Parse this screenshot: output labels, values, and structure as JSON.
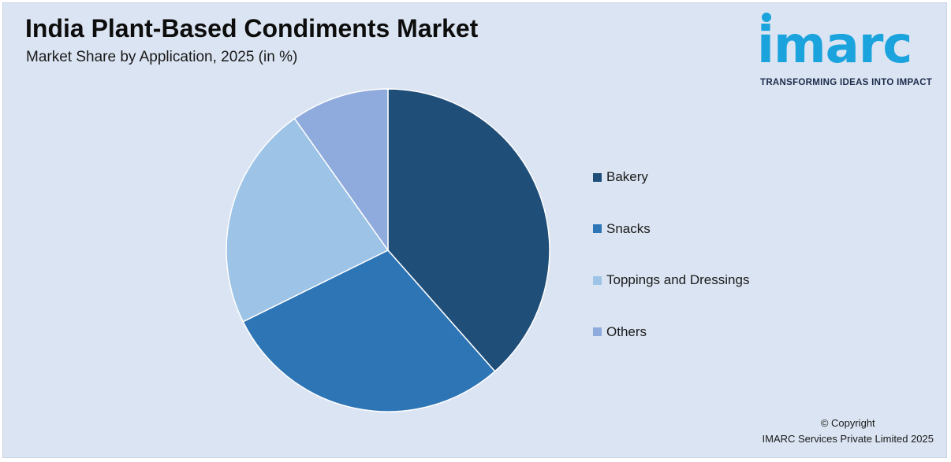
{
  "header": {
    "title": "India Plant-Based Condiments Market",
    "subtitle": "Market Share by Application, 2025 (in %)"
  },
  "logo": {
    "wordmark": "imarc",
    "tagline": "TRANSFORMING IDEAS INTO IMPACT",
    "color": "#1aa3dc"
  },
  "chart_data": {
    "type": "pie",
    "title": "India Plant-Based Condiments Market",
    "subtitle": "Market Share by Application, 2025 (in %)",
    "categories": [
      "Bakery",
      "Snacks",
      "Toppings and Dressings",
      "Others"
    ],
    "values": [
      38.5,
      29.2,
      22.5,
      9.8
    ],
    "colors": [
      "#1f4e79",
      "#2e75b6",
      "#9dc3e6",
      "#8faadc"
    ],
    "start_angle_deg": 0,
    "direction": "clockwise",
    "legend_position": "right"
  },
  "footer": {
    "copyright_line1": "© Copyright",
    "copyright_line2": "IMARC Services Private Limited 2025"
  }
}
